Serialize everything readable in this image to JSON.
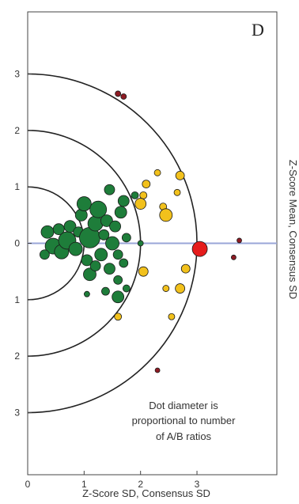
{
  "chart_data": {
    "type": "scatter",
    "panel_letter": "D",
    "xlabel": "Z-Score SD, Consensus SD",
    "ylabel": "Z-Score Mean, Consensus SD",
    "xlim": [
      0,
      3.85
    ],
    "ylim": [
      -4.1,
      4.1
    ],
    "x_ticks": [
      0,
      1,
      2,
      3
    ],
    "y_ticks": [
      {
        "value": 3,
        "label": "3"
      },
      {
        "value": 2,
        "label": "2"
      },
      {
        "value": 1,
        "label": "1"
      },
      {
        "value": 0,
        "label": "0"
      },
      {
        "value": -1,
        "label": "1"
      },
      {
        "value": -2,
        "label": "2"
      },
      {
        "value": -3,
        "label": "3"
      }
    ],
    "reference_circles": [
      1,
      2,
      3
    ],
    "reference_line_y": 0,
    "annotation_lines": [
      "Dot diameter is",
      "proportional to number",
      "of A/B ratios"
    ],
    "colors": {
      "green": "#1e7d3a",
      "yellow": "#f2c11c",
      "red": "#e51c1c",
      "darkred": "#8e1b24",
      "reference_line": "#9aa6d8",
      "circles": "#222222"
    },
    "points": [
      {
        "x": 0.35,
        "y": 0.2,
        "r": 1.6,
        "color": "green"
      },
      {
        "x": 0.45,
        "y": -0.05,
        "r": 2.0,
        "color": "green"
      },
      {
        "x": 0.55,
        "y": 0.25,
        "r": 1.4,
        "color": "green"
      },
      {
        "x": 0.6,
        "y": -0.15,
        "r": 1.8,
        "color": "green"
      },
      {
        "x": 0.3,
        "y": -0.2,
        "r": 1.2,
        "color": "green"
      },
      {
        "x": 0.7,
        "y": 0.05,
        "r": 2.2,
        "color": "green"
      },
      {
        "x": 0.75,
        "y": 0.3,
        "r": 1.5,
        "color": "green"
      },
      {
        "x": 0.85,
        "y": -0.1,
        "r": 1.7,
        "color": "green"
      },
      {
        "x": 0.9,
        "y": 0.2,
        "r": 1.3,
        "color": "green"
      },
      {
        "x": 0.95,
        "y": 0.5,
        "r": 1.5,
        "color": "green"
      },
      {
        "x": 1.0,
        "y": 0.7,
        "r": 1.8,
        "color": "green"
      },
      {
        "x": 1.05,
        "y": -0.3,
        "r": 1.4,
        "color": "green"
      },
      {
        "x": 1.1,
        "y": 0.1,
        "r": 2.6,
        "color": "green"
      },
      {
        "x": 1.2,
        "y": 0.35,
        "r": 1.9,
        "color": "green"
      },
      {
        "x": 1.25,
        "y": 0.6,
        "r": 2.1,
        "color": "green"
      },
      {
        "x": 1.3,
        "y": -0.2,
        "r": 1.6,
        "color": "green"
      },
      {
        "x": 1.35,
        "y": 0.15,
        "r": 1.3,
        "color": "green"
      },
      {
        "x": 1.4,
        "y": 0.4,
        "r": 1.5,
        "color": "green"
      },
      {
        "x": 1.45,
        "y": -0.45,
        "r": 1.4,
        "color": "green"
      },
      {
        "x": 1.5,
        "y": 0.0,
        "r": 1.7,
        "color": "green"
      },
      {
        "x": 1.55,
        "y": 0.3,
        "r": 1.4,
        "color": "green"
      },
      {
        "x": 1.6,
        "y": -0.2,
        "r": 1.2,
        "color": "green"
      },
      {
        "x": 1.65,
        "y": 0.55,
        "r": 1.5,
        "color": "green"
      },
      {
        "x": 1.7,
        "y": 0.75,
        "r": 1.4,
        "color": "green"
      },
      {
        "x": 1.75,
        "y": 0.1,
        "r": 1.1,
        "color": "green"
      },
      {
        "x": 1.1,
        "y": -0.55,
        "r": 1.6,
        "color": "green"
      },
      {
        "x": 1.2,
        "y": -0.4,
        "r": 1.3,
        "color": "green"
      },
      {
        "x": 1.45,
        "y": 0.95,
        "r": 1.3,
        "color": "green"
      },
      {
        "x": 1.6,
        "y": -0.65,
        "r": 1.1,
        "color": "green"
      },
      {
        "x": 1.7,
        "y": -0.35,
        "r": 1.1,
        "color": "green"
      },
      {
        "x": 1.9,
        "y": 0.85,
        "r": 0.9,
        "color": "green"
      },
      {
        "x": 2.0,
        "y": 0.0,
        "r": 0.7,
        "color": "green"
      },
      {
        "x": 1.75,
        "y": -0.8,
        "r": 0.9,
        "color": "green"
      },
      {
        "x": 1.38,
        "y": -0.85,
        "r": 1.0,
        "color": "green"
      },
      {
        "x": 1.6,
        "y": -0.95,
        "r": 1.5,
        "color": "green"
      },
      {
        "x": 1.05,
        "y": -0.9,
        "r": 0.7,
        "color": "green"
      },
      {
        "x": 2.1,
        "y": 1.05,
        "r": 1.0,
        "color": "yellow"
      },
      {
        "x": 2.3,
        "y": 1.25,
        "r": 0.8,
        "color": "yellow"
      },
      {
        "x": 2.7,
        "y": 1.2,
        "r": 1.1,
        "color": "yellow"
      },
      {
        "x": 2.05,
        "y": 0.85,
        "r": 0.9,
        "color": "yellow"
      },
      {
        "x": 2.0,
        "y": 0.7,
        "r": 1.4,
        "color": "yellow"
      },
      {
        "x": 2.4,
        "y": 0.65,
        "r": 0.9,
        "color": "yellow"
      },
      {
        "x": 2.45,
        "y": 0.5,
        "r": 1.6,
        "color": "yellow"
      },
      {
        "x": 2.65,
        "y": 0.9,
        "r": 0.8,
        "color": "yellow"
      },
      {
        "x": 2.05,
        "y": -0.5,
        "r": 1.2,
        "color": "yellow"
      },
      {
        "x": 2.8,
        "y": -0.45,
        "r": 1.1,
        "color": "yellow"
      },
      {
        "x": 2.45,
        "y": -0.8,
        "r": 0.8,
        "color": "yellow"
      },
      {
        "x": 2.7,
        "y": -0.8,
        "r": 1.2,
        "color": "yellow"
      },
      {
        "x": 1.6,
        "y": -1.3,
        "r": 0.9,
        "color": "yellow"
      },
      {
        "x": 2.55,
        "y": -1.3,
        "r": 0.8,
        "color": "yellow"
      },
      {
        "x": 3.05,
        "y": -0.1,
        "r": 1.9,
        "color": "red"
      },
      {
        "x": 1.6,
        "y": 2.65,
        "r": 0.7,
        "color": "darkred"
      },
      {
        "x": 1.7,
        "y": 2.6,
        "r": 0.7,
        "color": "darkred"
      },
      {
        "x": 3.75,
        "y": 0.05,
        "r": 0.6,
        "color": "darkred"
      },
      {
        "x": 3.65,
        "y": -0.25,
        "r": 0.6,
        "color": "darkred"
      },
      {
        "x": 2.3,
        "y": -2.25,
        "r": 0.6,
        "color": "darkred"
      }
    ]
  }
}
